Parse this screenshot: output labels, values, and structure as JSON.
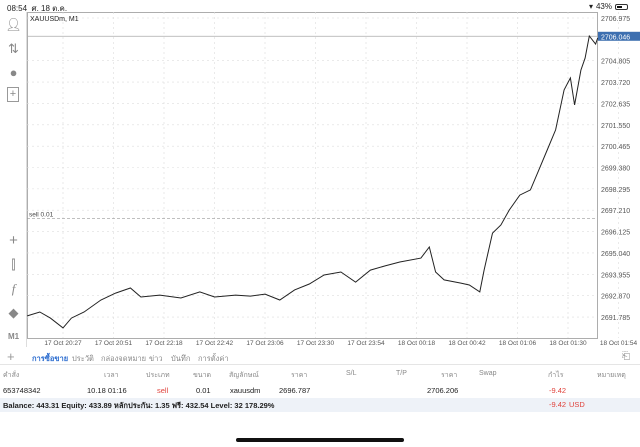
{
  "status": {
    "time": "08:54",
    "date": "ศ. 18 ต.ค.",
    "battery": "43%"
  },
  "chart": {
    "symbol_label": "XAUUSDm, M1",
    "price_labels": [
      "2706.975",
      "2704.805",
      "2703.720",
      "2702.635",
      "2701.550",
      "2700.465",
      "2699.380",
      "2698.295",
      "2697.210",
      "2696.125",
      "2695.040",
      "2693.955",
      "2692.870",
      "2691.785"
    ],
    "time_labels": [
      "17 Oct 20:27",
      "17 Oct 20:51",
      "17 Oct 22:18",
      "17 Oct 22:42",
      "17 Oct 23:06",
      "17 Oct 23:30",
      "17 Oct 23:54",
      "18 Oct 00:18",
      "18 Oct 00:42",
      "18 Oct 01:06",
      "18 Oct 01:30",
      "18 Oct 01:54"
    ],
    "current_price": "2706.046",
    "current_price_value": 2706.046,
    "order_line_label": "sell 0.01",
    "order_line_price": 2696.787,
    "line_color": "#222222",
    "current_price_bg": "#3d6fb0",
    "series_minutes_price": [
      [
        -17,
        2691.84
      ],
      [
        -11,
        2692.04
      ],
      [
        -6,
        2691.73
      ],
      [
        0,
        2691.23
      ],
      [
        4,
        2691.73
      ],
      [
        10,
        2692.04
      ],
      [
        18,
        2692.65
      ],
      [
        25,
        2693.0
      ],
      [
        32,
        2693.26
      ],
      [
        37,
        2692.8
      ],
      [
        46,
        2692.9
      ],
      [
        56,
        2692.75
      ],
      [
        65,
        2693.06
      ],
      [
        72,
        2692.8
      ],
      [
        82,
        2692.9
      ],
      [
        89,
        2692.85
      ],
      [
        96,
        2692.95
      ],
      [
        103,
        2692.65
      ],
      [
        110,
        2693.16
      ],
      [
        117,
        2693.46
      ],
      [
        124,
        2693.92
      ],
      [
        132,
        2694.07
      ],
      [
        139,
        2693.56
      ],
      [
        146,
        2694.17
      ],
      [
        153,
        2694.38
      ],
      [
        160,
        2694.58
      ],
      [
        170,
        2694.78
      ],
      [
        174,
        2695.34
      ],
      [
        177,
        2694.07
      ],
      [
        181,
        2693.67
      ],
      [
        189,
        2693.51
      ],
      [
        193,
        2693.41
      ],
      [
        198,
        2693.06
      ],
      [
        200,
        2694.17
      ],
      [
        204,
        2696.05
      ],
      [
        208,
        2696.46
      ],
      [
        212,
        2697.22
      ],
      [
        217,
        2697.98
      ],
      [
        222,
        2698.24
      ],
      [
        226,
        2699.25
      ],
      [
        230,
        2700.27
      ],
      [
        234,
        2701.29
      ],
      [
        238,
        2703.32
      ],
      [
        241,
        2703.93
      ],
      [
        243,
        2702.56
      ],
      [
        246,
        2704.33
      ],
      [
        248,
        2704.94
      ],
      [
        250,
        2706.06
      ],
      [
        253,
        2705.65
      ],
      [
        254,
        2705.96
      ]
    ]
  },
  "tabs": [
    "การซื้อขาย",
    "ประวัติ",
    "กล่องจดหมาย",
    "ข่าว",
    "บันทึก",
    "การตั้งค่า"
  ],
  "table": {
    "headers": [
      "คำสั่ง",
      "เวลา",
      "ประเภท",
      "ขนาด",
      "สัญลักษณ์",
      "ราคา",
      "S/L",
      "T/P",
      "ราคา",
      "Swap",
      "กำไร",
      "หมายเหตุ"
    ],
    "row": {
      "ticket": "653748342",
      "time": "10.18 01:16",
      "type": "sell",
      "size": "0.01",
      "symbol": "xauusdm",
      "open_price": "2696.787",
      "current_price": "2706.206",
      "profit": "-9.42"
    },
    "balance": "Balance: 443.31 Equity: 433.89 หลักประกัน: 1.35 ฟรี: 432.54 Level: 32 178.29%",
    "total_profit": "-9.42",
    "currency": "USD"
  },
  "toolbar": {
    "timeframe": "M1"
  }
}
